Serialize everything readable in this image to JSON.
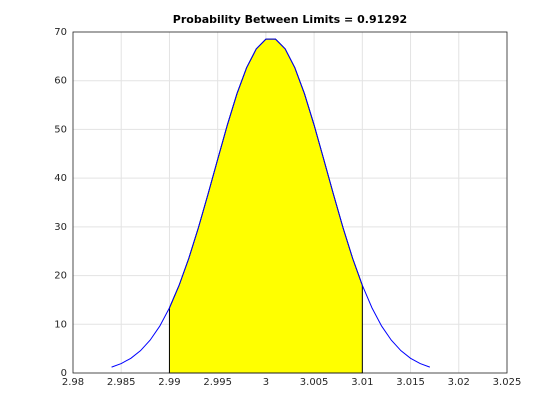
{
  "chart_data": {
    "type": "line",
    "title": "Probability Between Limits = 0.91292",
    "x": [
      2.984,
      2.985,
      2.986,
      2.987,
      2.988,
      2.989,
      2.99,
      2.991,
      2.992,
      2.993,
      2.994,
      2.995,
      2.996,
      2.997,
      2.998,
      2.999,
      3.0,
      3.001,
      3.002,
      3.003,
      3.004,
      3.005,
      3.006,
      3.007,
      3.008,
      3.009,
      3.01,
      3.011,
      3.012,
      3.013,
      3.014,
      3.015,
      3.016,
      3.017
    ],
    "values": [
      1.2,
      1.94,
      3.02,
      4.58,
      6.75,
      9.63,
      13.37,
      17.99,
      23.5,
      29.81,
      36.71,
      43.85,
      50.9,
      57.34,
      62.68,
      66.52,
      68.53,
      68.53,
      66.52,
      62.68,
      57.34,
      50.9,
      43.85,
      36.71,
      29.81,
      23.5,
      17.99,
      13.37,
      9.63,
      6.75,
      4.58,
      3.02,
      1.94,
      1.2
    ],
    "color": "#0000ff",
    "limits": [
      2.99,
      3.01
    ],
    "fill_color": "#ffff00",
    "xlim": [
      2.98,
      3.025
    ],
    "xticks": [
      2.98,
      2.985,
      2.99,
      2.995,
      3,
      3.005,
      3.01,
      3.015,
      3.02,
      3.025
    ],
    "ylim": [
      0,
      70
    ],
    "yticks": [
      0,
      10,
      20,
      30,
      40,
      50,
      60,
      70
    ],
    "grid": true
  }
}
